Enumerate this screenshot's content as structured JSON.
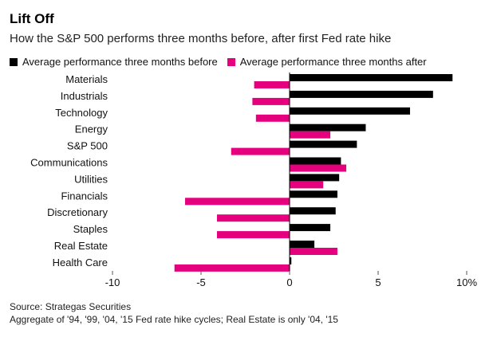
{
  "chart_data": {
    "type": "bar",
    "orientation": "horizontal",
    "title": "Lift Off",
    "subtitle": "How the S&P 500 performs three months before, after first Fed rate hike",
    "categories": [
      "Materials",
      "Industrials",
      "Technology",
      "Energy",
      "S&P 500",
      "Communications",
      "Utilities",
      "Financials",
      "Discretionary",
      "Staples",
      "Real Estate",
      "Health Care"
    ],
    "series": [
      {
        "name": "Average performance three months before",
        "color": "#000000",
        "values": [
          9.2,
          8.1,
          6.8,
          4.3,
          3.8,
          2.9,
          2.8,
          2.7,
          2.6,
          2.3,
          1.4,
          0.1
        ]
      },
      {
        "name": "Average performance three months after",
        "color": "#e5007e",
        "values": [
          -2.0,
          -2.1,
          -1.9,
          2.3,
          -3.3,
          3.2,
          1.9,
          -5.9,
          -4.1,
          -4.1,
          2.7,
          -6.5
        ]
      }
    ],
    "xlim": [
      -10,
      10
    ],
    "xticks": [
      -10,
      -5,
      0,
      5,
      10
    ],
    "xtick_labels": [
      "-10",
      "-5",
      "0",
      "5",
      "10%"
    ],
    "legend_position": "top-left"
  },
  "footer": {
    "source": "Source: Strategas Securities",
    "note": "Aggregate of '94, '99, '04, '15 Fed rate hike cycles; Real Estate is only '04, '15"
  }
}
